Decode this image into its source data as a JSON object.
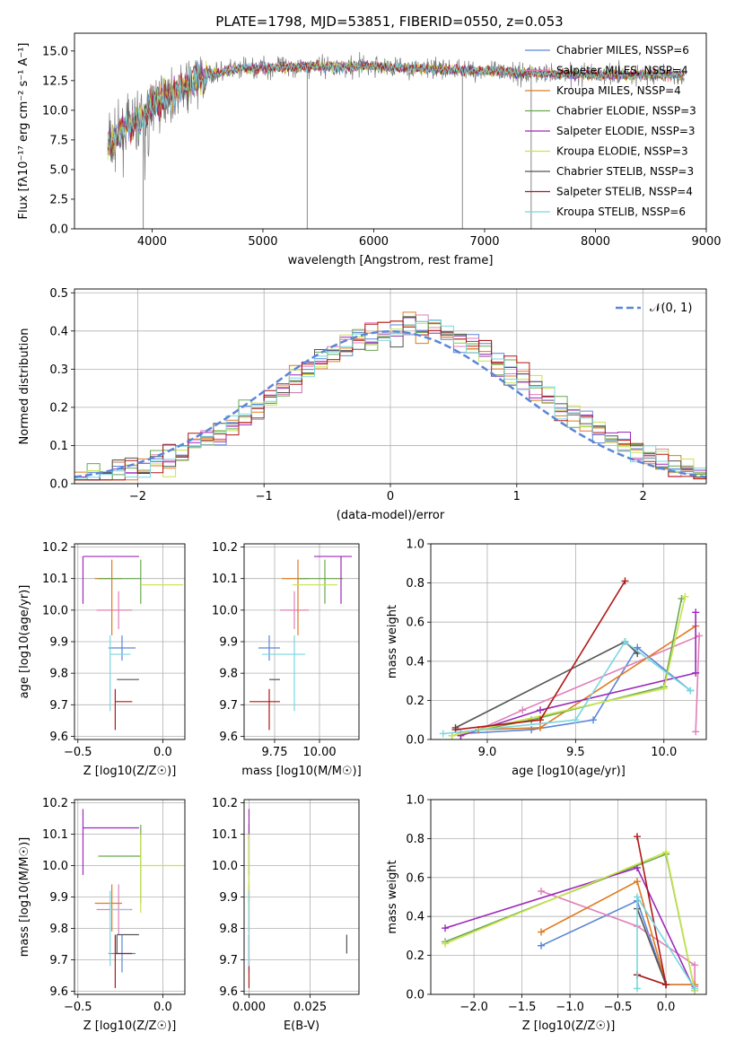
{
  "figure": {
    "title": "PLATE=1798, MJD=53851, FIBERID=0550, z=0.053"
  },
  "colors": {
    "Chabrier MILES": "#5b86d6",
    "Salpeter MILES": "#e07fb8",
    "Kroupa MILES": "#e07a1f",
    "Chabrier ELODIE": "#6aa84f",
    "Salpeter ELODIE": "#9c2ab8",
    "Kroupa ELODIE": "#c8e34d",
    "Chabrier STELIB": "#555555",
    "Salpeter STELIB": "#b01818",
    "Kroupa STELIB": "#79d7df"
  },
  "chart_data": [
    {
      "id": "spectrum",
      "type": "line",
      "title": "PLATE=1798, MJD=53851, FIBERID=0550, z=0.053",
      "xlabel": "wavelength [Angstrom, rest frame]",
      "ylabel": "Flux [fλ10⁻¹⁷ erg cm⁻² s⁻¹ A⁻¹]",
      "xlim": [
        3300,
        9000
      ],
      "ylim": [
        0,
        16.5
      ],
      "xticks": [
        4000,
        5000,
        6000,
        7000,
        8000,
        9000
      ],
      "yticks": [
        0.0,
        2.5,
        5.0,
        7.5,
        10.0,
        12.5,
        15.0
      ],
      "xtick_labels": [
        "4000",
        "5000",
        "6000",
        "7000",
        "8000",
        "9000"
      ],
      "ytick_labels": [
        "0.0",
        "2.5",
        "5.0",
        "7.5",
        "10.0",
        "12.5",
        "15.0"
      ],
      "grid": false,
      "legend_position": "right",
      "legend": [
        "Chabrier MILES, NSSP=6",
        "Salpeter MILES, NSSP=4",
        "Kroupa MILES, NSSP=4",
        "Chabrier ELODIE, NSSP=3",
        "Salpeter ELODIE, NSSP=3",
        "Kroupa ELODIE, NSSP=3",
        "Chabrier STELIB, NSSP=3",
        "Salpeter STELIB, NSSP=4",
        "Kroupa STELIB, NSSP=6"
      ],
      "series_approx": {
        "wavelength_range": [
          3600,
          8800
        ],
        "continuum_points": [
          [
            3600,
            7.0
          ],
          [
            3750,
            8.5
          ],
          [
            3900,
            9.2
          ],
          [
            4000,
            10.5
          ],
          [
            4200,
            11.5
          ],
          [
            4500,
            13.0
          ],
          [
            4800,
            13.5
          ],
          [
            5000,
            13.6
          ],
          [
            5500,
            13.7
          ],
          [
            6000,
            13.7
          ],
          [
            6500,
            13.5
          ],
          [
            7000,
            13.3
          ],
          [
            7500,
            13.1
          ],
          [
            8000,
            13.0
          ],
          [
            8500,
            13.0
          ],
          [
            8800,
            12.9
          ]
        ]
      }
    },
    {
      "id": "residual-histogram",
      "type": "bar",
      "xlabel": "(data-model)/error",
      "ylabel": "Normed distribution",
      "xlim": [
        -2.5,
        2.5
      ],
      "ylim": [
        0,
        0.51
      ],
      "xticks": [
        -2,
        -1,
        0,
        1,
        2
      ],
      "yticks": [
        0.0,
        0.1,
        0.2,
        0.3,
        0.4,
        0.5
      ],
      "xtick_labels": [
        "−2",
        "−1",
        "0",
        "1",
        "2"
      ],
      "ytick_labels": [
        "0.0",
        "0.1",
        "0.2",
        "0.3",
        "0.4",
        "0.5"
      ],
      "grid": true,
      "legend_position": "top-right",
      "legend": [
        "𝒩(0, 1)"
      ],
      "bin_edges_from": -2.5,
      "bin_width": 0.1
    },
    {
      "id": "age-vs-Z",
      "type": "scatter",
      "xlabel": "Z [log10(Z/Z☉)]",
      "ylabel": "age  [log10(age/yr)]",
      "xlim": [
        -0.52,
        0.13
      ],
      "ylim": [
        9.59,
        10.21
      ],
      "xticks": [
        -0.5,
        0.0
      ],
      "yticks": [
        9.6,
        9.7,
        9.8,
        9.9,
        10.0,
        10.1,
        10.2
      ],
      "xtick_labels": [
        "−0.5",
        "0.0"
      ],
      "ytick_labels": [
        "9.6",
        "9.7",
        "9.8",
        "9.9",
        "10.0",
        "10.1",
        "10.2"
      ],
      "grid": true
    },
    {
      "id": "age-vs-mass",
      "type": "scatter",
      "xlabel": "mass [log10(M/M☉)]",
      "ylabel": "",
      "xlim": [
        9.58,
        10.22
      ],
      "ylim": [
        9.59,
        10.21
      ],
      "xticks": [
        9.75,
        10.0
      ],
      "yticks": [
        9.6,
        9.7,
        9.8,
        9.9,
        10.0,
        10.1,
        10.2
      ],
      "xtick_labels": [
        "9.75",
        "10.00"
      ],
      "ytick_labels": [
        "9.6",
        "9.7",
        "9.8",
        "9.9",
        "10.0",
        "10.1",
        "10.2"
      ],
      "grid": true
    },
    {
      "id": "massweight-vs-age",
      "type": "line",
      "xlabel": "age  [log10(age/yr)]",
      "ylabel": "mass weight",
      "xlim": [
        8.68,
        10.24
      ],
      "ylim": [
        0.0,
        1.0
      ],
      "xticks": [
        9.0,
        9.5,
        10.0
      ],
      "yticks": [
        0.0,
        0.2,
        0.4,
        0.6,
        0.8,
        1.0
      ],
      "xtick_labels": [
        "9.0",
        "9.5",
        "10.0"
      ],
      "ytick_labels": [
        "0.0",
        "0.2",
        "0.4",
        "0.6",
        "0.8",
        "1.0"
      ],
      "grid": true
    },
    {
      "id": "mass-vs-Z",
      "type": "scatter",
      "xlabel": "Z [log10(Z/Z☉)]",
      "ylabel": "mass [log10(M/M☉)]",
      "xlim": [
        -0.52,
        0.13
      ],
      "ylim": [
        9.59,
        10.21
      ],
      "xticks": [
        -0.5,
        0.0
      ],
      "yticks": [
        9.6,
        9.7,
        9.8,
        9.9,
        10.0,
        10.1,
        10.2
      ],
      "xtick_labels": [
        "−0.5",
        "0.0"
      ],
      "ytick_labels": [
        "9.6",
        "9.7",
        "9.8",
        "9.9",
        "10.0",
        "10.1",
        "10.2"
      ],
      "grid": true
    },
    {
      "id": "mass-vs-ebv",
      "type": "scatter",
      "xlabel": "E(B-V)",
      "ylabel": "",
      "xlim": [
        -0.002,
        0.045
      ],
      "ylim": [
        9.59,
        10.21
      ],
      "xticks": [
        0.0,
        0.025
      ],
      "yticks": [
        9.6,
        9.7,
        9.8,
        9.9,
        10.0,
        10.1,
        10.2
      ],
      "xtick_labels": [
        "0.000",
        "0.025"
      ],
      "ytick_labels": [
        "9.6",
        "9.7",
        "9.8",
        "9.9",
        "10.0",
        "10.1",
        "10.2"
      ],
      "grid": true
    },
    {
      "id": "massweight-vs-Z",
      "type": "line",
      "xlabel": "Z [log10(Z/Z☉)]",
      "ylabel": "mass weight",
      "xlim": [
        -2.45,
        0.42
      ],
      "ylim": [
        0.0,
        1.0
      ],
      "xticks": [
        -2.0,
        -1.5,
        -1.0,
        -0.5,
        0.0
      ],
      "yticks": [
        0.0,
        0.2,
        0.4,
        0.6,
        0.8,
        1.0
      ],
      "xtick_labels": [
        "−2.0",
        "−1.5",
        "−1.0",
        "−0.5",
        "0.0"
      ],
      "ytick_labels": [
        "0.0",
        "0.2",
        "0.4",
        "0.6",
        "0.8",
        "1.0"
      ],
      "grid": true
    }
  ],
  "models": [
    {
      "name": "Chabrier MILES",
      "age": 9.88,
      "age_err": [
        0.04,
        0.04
      ],
      "Z": -0.24,
      "Z_err": [
        0.08,
        0.08
      ],
      "mass": 9.72,
      "mass_err": [
        0.06,
        0.06
      ],
      "ebv": 0.0,
      "weights_age": [
        [
          8.85,
          0.03
        ],
        [
          9.25,
          0.05
        ],
        [
          9.6,
          0.1
        ],
        [
          9.85,
          0.47
        ],
        [
          10.15,
          0.25
        ]
      ],
      "weights_Z": [
        [
          -1.3,
          0.25
        ],
        [
          -0.3,
          0.48
        ],
        [
          0.0,
          0.05
        ],
        [
          0.3,
          0.05
        ]
      ]
    },
    {
      "name": "Salpeter MILES",
      "age": 10.0,
      "age_err": [
        0.06,
        0.06
      ],
      "Z": -0.26,
      "Z_err": [
        0.13,
        0.08
      ],
      "mass": 9.86,
      "mass_err": [
        0.08,
        0.08
      ],
      "ebv": 0.0,
      "weights_age": [
        [
          8.95,
          0.05
        ],
        [
          9.2,
          0.15
        ],
        [
          10.2,
          0.53
        ],
        [
          10.18,
          0.04
        ]
      ],
      "weights_Z": [
        [
          -1.3,
          0.53
        ],
        [
          -0.3,
          0.35
        ],
        [
          0.3,
          0.15
        ],
        [
          0.3,
          0.04
        ]
      ]
    },
    {
      "name": "Kroupa MILES",
      "age": 10.1,
      "age_err": [
        0.18,
        0.06
      ],
      "Z": -0.3,
      "Z_err": [
        0.1,
        0.06
      ],
      "mass": 9.88,
      "mass_err": [
        0.09,
        0.06
      ],
      "ebv": 0.0,
      "weights_age": [
        [
          8.85,
          0.02
        ],
        [
          8.95,
          0.05
        ],
        [
          9.3,
          0.06
        ],
        [
          10.18,
          0.58
        ]
      ],
      "weights_Z": [
        [
          -1.3,
          0.32
        ],
        [
          -0.3,
          0.58
        ],
        [
          0.0,
          0.05
        ],
        [
          0.3,
          0.05
        ]
      ]
    },
    {
      "name": "Chabrier ELODIE",
      "age": 10.1,
      "age_err": [
        0.08,
        0.06
      ],
      "Z": -0.13,
      "Z_err": [
        0.25,
        0.0
      ],
      "mass": 10.03,
      "mass_err": [
        0.15,
        0.1
      ],
      "ebv": 0.0,
      "weights_age": [
        [
          8.8,
          0.02
        ],
        [
          9.25,
          0.1
        ],
        [
          10.0,
          0.27
        ],
        [
          10.1,
          0.72
        ]
      ],
      "weights_Z": [
        [
          -2.3,
          0.27
        ],
        [
          0.0,
          0.72
        ],
        [
          0.3,
          0.02
        ]
      ]
    },
    {
      "name": "Salpeter ELODIE",
      "age": 10.17,
      "age_err": [
        0.15,
        0.0
      ],
      "Z": -0.47,
      "Z_err": [
        0.0,
        0.33
      ],
      "mass": 10.12,
      "mass_err": [
        0.15,
        0.06
      ],
      "ebv": 0.0,
      "weights_age": [
        [
          8.85,
          0.02
        ],
        [
          9.3,
          0.15
        ],
        [
          10.18,
          0.34
        ],
        [
          10.18,
          0.65
        ]
      ],
      "weights_Z": [
        [
          -2.3,
          0.34
        ],
        [
          -0.3,
          0.65
        ],
        [
          0.3,
          0.02
        ]
      ]
    },
    {
      "name": "Kroupa ELODIE",
      "age": 10.08,
      "age_err": [
        0.0,
        0.0
      ],
      "Z": -0.13,
      "Z_err": [
        0.0,
        0.25
      ],
      "mass": 10.0,
      "mass_err": [
        0.15,
        0.1
      ],
      "ebv": 0.0,
      "weights_age": [
        [
          8.8,
          0.02
        ],
        [
          10.0,
          0.26
        ],
        [
          10.12,
          0.73
        ]
      ],
      "weights_Z": [
        [
          -2.3,
          0.26
        ],
        [
          0.0,
          0.73
        ],
        [
          0.3,
          0.02
        ]
      ]
    },
    {
      "name": "Chabrier STELIB",
      "age": 9.78,
      "age_err": [
        0.0,
        0.0
      ],
      "Z": -0.27,
      "Z_err": [
        0.0,
        0.13
      ],
      "mass": 9.78,
      "mass_err": [
        0.06,
        0.0
      ],
      "ebv": 0.04,
      "weights_age": [
        [
          8.82,
          0.06
        ],
        [
          9.78,
          0.5
        ],
        [
          9.85,
          0.44
        ]
      ],
      "weights_Z": [
        [
          -0.3,
          0.1
        ],
        [
          0.0,
          0.05
        ],
        [
          -0.3,
          0.44
        ]
      ]
    },
    {
      "name": "Salpeter STELIB",
      "age": 9.71,
      "age_err": [
        0.09,
        0.04
      ],
      "Z": -0.28,
      "Z_err": [
        0.0,
        0.1
      ],
      "mass": 9.72,
      "mass_err": [
        0.11,
        0.06
      ],
      "ebv": 0.0,
      "weights_age": [
        [
          8.82,
          0.05
        ],
        [
          9.3,
          0.1
        ],
        [
          9.78,
          0.81
        ]
      ],
      "weights_Z": [
        [
          -0.3,
          0.1
        ],
        [
          0.0,
          0.05
        ],
        [
          -0.3,
          0.81
        ]
      ]
    },
    {
      "name": "Kroupa STELIB",
      "age": 9.86,
      "age_err": [
        0.18,
        0.06
      ],
      "Z": -0.31,
      "Z_err": [
        0.0,
        0.12
      ],
      "mass": 9.86,
      "mass_err": [
        0.18,
        0.06
      ],
      "ebv": 0.0,
      "weights_age": [
        [
          8.75,
          0.03
        ],
        [
          9.5,
          0.1
        ],
        [
          9.78,
          0.5
        ],
        [
          10.15,
          0.25
        ]
      ],
      "weights_Z": [
        [
          -0.3,
          0.03
        ],
        [
          -0.3,
          0.5
        ],
        [
          0.3,
          0.03
        ]
      ]
    }
  ]
}
